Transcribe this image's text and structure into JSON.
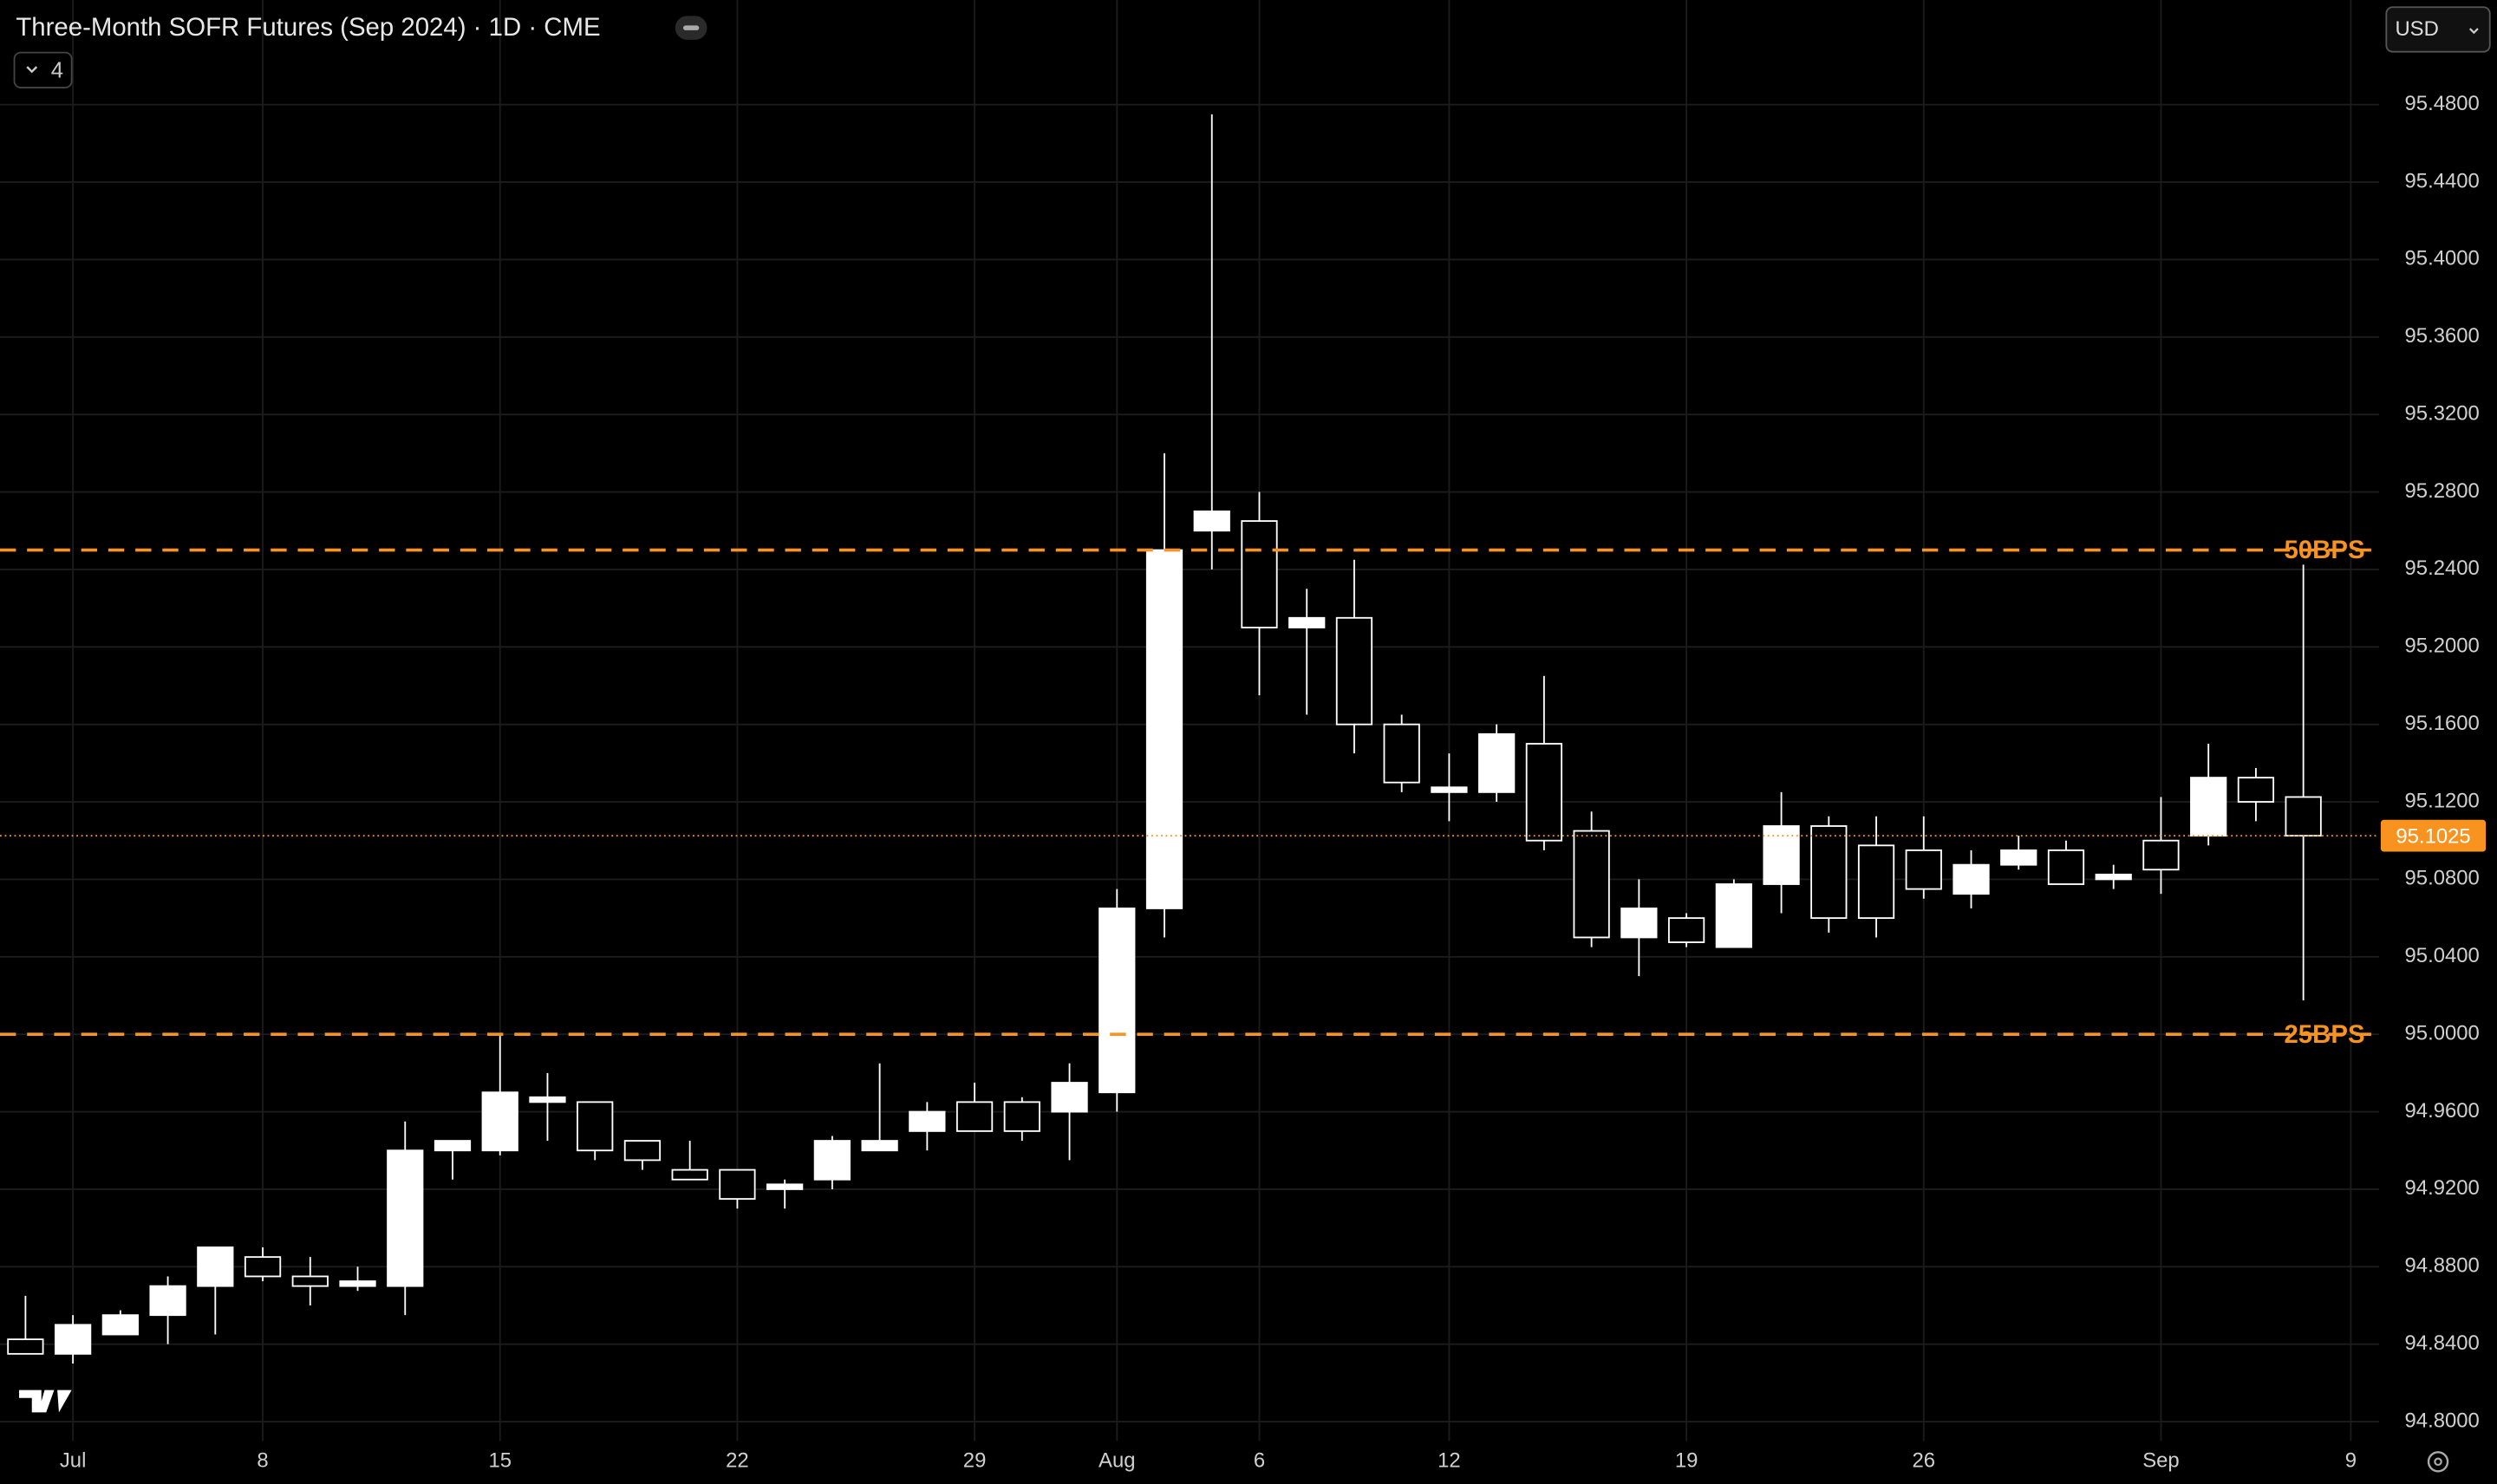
{
  "chart_data": {
    "type": "candlestick",
    "title": "Three-Month SOFR Futures (Sep 2024) · 1D · CME",
    "indicator_count": 4,
    "currency": "USD",
    "color": "#ffffff",
    "grid": true,
    "categories": [
      null,
      "Jul",
      null,
      null,
      null,
      "8",
      null,
      null,
      null,
      null,
      "15",
      null,
      null,
      null,
      null,
      "22",
      null,
      null,
      null,
      null,
      "29",
      null,
      null,
      "Aug",
      null,
      null,
      "6",
      null,
      null,
      null,
      "12",
      null,
      null,
      null,
      null,
      "19",
      null,
      null,
      null,
      null,
      "26",
      null,
      null,
      null,
      null,
      "Sep",
      null,
      null,
      null,
      "9"
    ],
    "open": [
      94.8425,
      94.835,
      94.845,
      94.855,
      94.87,
      94.885,
      94.875,
      94.87,
      94.87,
      94.94,
      94.94,
      94.965,
      94.965,
      94.945,
      94.93,
      94.93,
      94.92,
      94.925,
      94.94,
      94.95,
      94.965,
      94.965,
      94.96,
      94.97,
      95.065,
      95.26,
      95.265,
      95.21,
      95.215,
      95.16,
      95.125,
      95.125,
      95.15,
      95.105,
      95.05,
      95.06,
      95.045,
      95.0775,
      95.1075,
      95.0975,
      95.095,
      95.0725,
      95.0875,
      95.095,
      95.08,
      95.1,
      95.1025,
      95.1325,
      95.1225,
      null
    ],
    "high": [
      94.865,
      94.855,
      94.8575,
      94.875,
      94.89,
      94.89,
      94.885,
      94.88,
      94.955,
      94.945,
      95.0,
      94.98,
      94.965,
      94.945,
      94.945,
      94.93,
      94.925,
      94.9475,
      94.985,
      94.965,
      94.975,
      94.9675,
      94.985,
      95.075,
      95.3,
      95.475,
      95.28,
      95.23,
      95.245,
      95.165,
      95.145,
      95.16,
      95.185,
      95.115,
      95.08,
      95.0625,
      95.08,
      95.125,
      95.1125,
      95.1125,
      95.1125,
      95.095,
      95.1025,
      95.1,
      95.0875,
      95.1225,
      95.15,
      95.1375,
      95.2425,
      null
    ],
    "low": [
      94.835,
      94.83,
      94.845,
      94.84,
      94.845,
      94.8725,
      94.86,
      94.8675,
      94.855,
      94.925,
      94.9375,
      94.945,
      94.935,
      94.93,
      94.925,
      94.91,
      94.91,
      94.92,
      94.94,
      94.94,
      94.95,
      94.945,
      94.935,
      94.96,
      95.05,
      95.24,
      95.175,
      95.165,
      95.145,
      95.125,
      95.11,
      95.12,
      95.095,
      95.045,
      95.03,
      95.045,
      95.045,
      95.0625,
      95.0525,
      95.05,
      95.07,
      95.065,
      95.085,
      95.0775,
      95.075,
      95.0725,
      95.0975,
      95.11,
      95.0175,
      null
    ],
    "close": [
      94.835,
      94.85,
      94.855,
      94.87,
      94.89,
      94.875,
      94.87,
      94.8725,
      94.94,
      94.945,
      94.97,
      94.9675,
      94.94,
      94.935,
      94.925,
      94.915,
      94.9225,
      94.945,
      94.945,
      94.96,
      94.95,
      94.95,
      94.975,
      95.065,
      95.25,
      95.27,
      95.21,
      95.215,
      95.16,
      95.13,
      95.1275,
      95.155,
      95.1,
      95.05,
      95.065,
      95.0475,
      95.0775,
      95.1075,
      95.06,
      95.06,
      95.075,
      95.0875,
      95.095,
      95.0775,
      95.0825,
      95.085,
      95.1325,
      95.12,
      95.1025,
      null
    ],
    "ylim": [
      94.79,
      95.534
    ],
    "yticks": [
      {
        "value": 95.48,
        "label": "95.4800"
      },
      {
        "value": 95.44,
        "label": "95.4400"
      },
      {
        "value": 95.4,
        "label": "95.4000"
      },
      {
        "value": 95.36,
        "label": "95.3600"
      },
      {
        "value": 95.32,
        "label": "95.3200"
      },
      {
        "value": 95.28,
        "label": "95.2800"
      },
      {
        "value": 95.24,
        "label": "95.2400"
      },
      {
        "value": 95.2,
        "label": "95.2000"
      },
      {
        "value": 95.16,
        "label": "95.1600"
      },
      {
        "value": 95.12,
        "label": "95.1200"
      },
      {
        "value": 95.08,
        "label": "95.0800"
      },
      {
        "value": 95.04,
        "label": "95.0400"
      },
      {
        "value": 95.0,
        "label": "95.0000"
      },
      {
        "value": 94.96,
        "label": "94.9600"
      },
      {
        "value": 94.92,
        "label": "94.9200"
      },
      {
        "value": 94.88,
        "label": "94.8800"
      },
      {
        "value": 94.84,
        "label": "94.8400"
      },
      {
        "value": 94.8,
        "label": "94.8000"
      }
    ],
    "hlines": [
      {
        "value": 95.25,
        "label": "50BPS",
        "color": "#f7931e"
      },
      {
        "value": 95.0,
        "label": "25BPS",
        "color": "#f7931e"
      }
    ],
    "last_price": 95.1025,
    "last_price_color": "#f7931e"
  }
}
